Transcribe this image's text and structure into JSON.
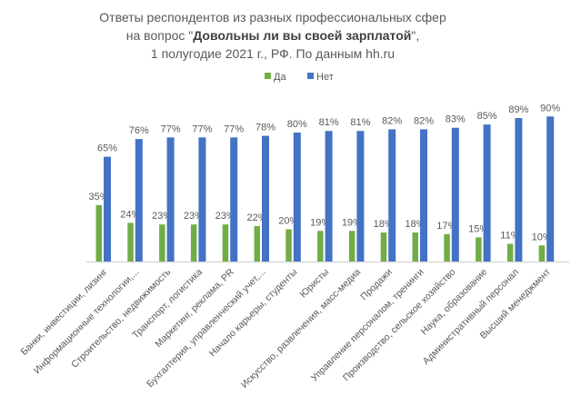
{
  "chart_data": {
    "type": "bar",
    "title": [
      "Ответы респондентов из разных профессиональных сфер",
      "на вопрос \"Довольны ли вы своей зарплатой\",",
      "1 полугодие 2021 г., РФ. По данным hh.ru"
    ],
    "title_bold_part": "Довольны ли вы своей зарплатой",
    "legend_position": "top",
    "categories": [
      "Банки, инвестиции, лизинг",
      "Информационные технологии,...",
      "Строительство, недвижимость",
      "Транспорт, логистика",
      "Маркетинг, реклама, PR",
      "Бухгалтерия, управленческий учет,...",
      "Начало карьеры, студенты",
      "Юристы",
      "Искусство, развлечения, масс-медиа",
      "Продажи",
      "Управление персоналом, тренинги",
      "Производство, сельское хозяйство",
      "Наука, образование",
      "Административный персонал",
      "Высший менеджмент"
    ],
    "series": [
      {
        "name": "Да",
        "color": "#70ad47",
        "values": [
          35,
          24,
          23,
          23,
          23,
          22,
          20,
          19,
          19,
          18,
          18,
          17,
          15,
          11,
          10
        ]
      },
      {
        "name": "Нет",
        "color": "#4472c4",
        "values": [
          65,
          76,
          77,
          77,
          77,
          78,
          80,
          81,
          81,
          82,
          82,
          83,
          85,
          89,
          90
        ]
      }
    ],
    "value_suffix": "%",
    "ylim": [
      0,
      100
    ],
    "grid": false
  }
}
